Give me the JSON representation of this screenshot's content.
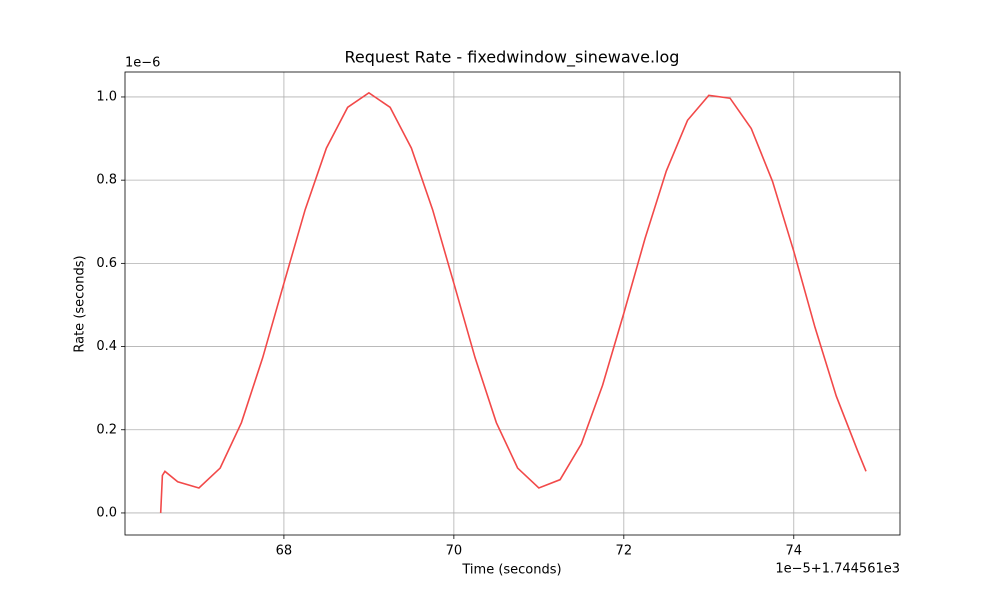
{
  "chart_data": {
    "type": "line",
    "title": "Request Rate - fixedwindow_sinewave.log",
    "x_label": "Time (seconds)",
    "y_label": "Rate (seconds)",
    "x_offset_label": "1e−5+1.744561e3",
    "y_offset_label": "1e−6",
    "x": [
      66.55,
      66.57,
      66.6,
      66.75,
      67.0,
      67.25,
      67.5,
      67.75,
      68.0,
      68.25,
      68.5,
      68.75,
      69.0,
      69.25,
      69.5,
      69.75,
      70.0,
      70.25,
      70.5,
      70.75,
      71.0,
      71.25,
      71.5,
      71.75,
      72.0,
      72.25,
      72.5,
      72.75,
      73.0,
      73.25,
      73.5,
      73.75,
      74.0,
      74.25,
      74.5,
      74.75,
      74.85
    ],
    "series": [
      {
        "name": "Rate",
        "color": "#f24949",
        "values": [
          0,
          0.09,
          0.1,
          0.075,
          0.06,
          0.108,
          0.217,
          0.373,
          0.552,
          0.729,
          0.877,
          0.975,
          1.01,
          0.975,
          0.877,
          0.729,
          0.552,
          0.373,
          0.217,
          0.108,
          0.06,
          0.08,
          0.166,
          0.307,
          0.48,
          0.66,
          0.822,
          0.944,
          1.004,
          0.997,
          0.924,
          0.797,
          0.629,
          0.446,
          0.281,
          0.15,
          0.1
        ]
      }
    ],
    "xlim": [
      66.13,
      75.25
    ],
    "ylim": [
      -0.053,
      1.06
    ],
    "xticks": [
      68,
      70,
      72,
      74
    ],
    "yticks": [
      {
        "value": 0,
        "label": "0.0"
      },
      0.2,
      0.4,
      0.6,
      0.8,
      {
        "value": 1,
        "label": "1.0"
      }
    ],
    "grid": true
  }
}
